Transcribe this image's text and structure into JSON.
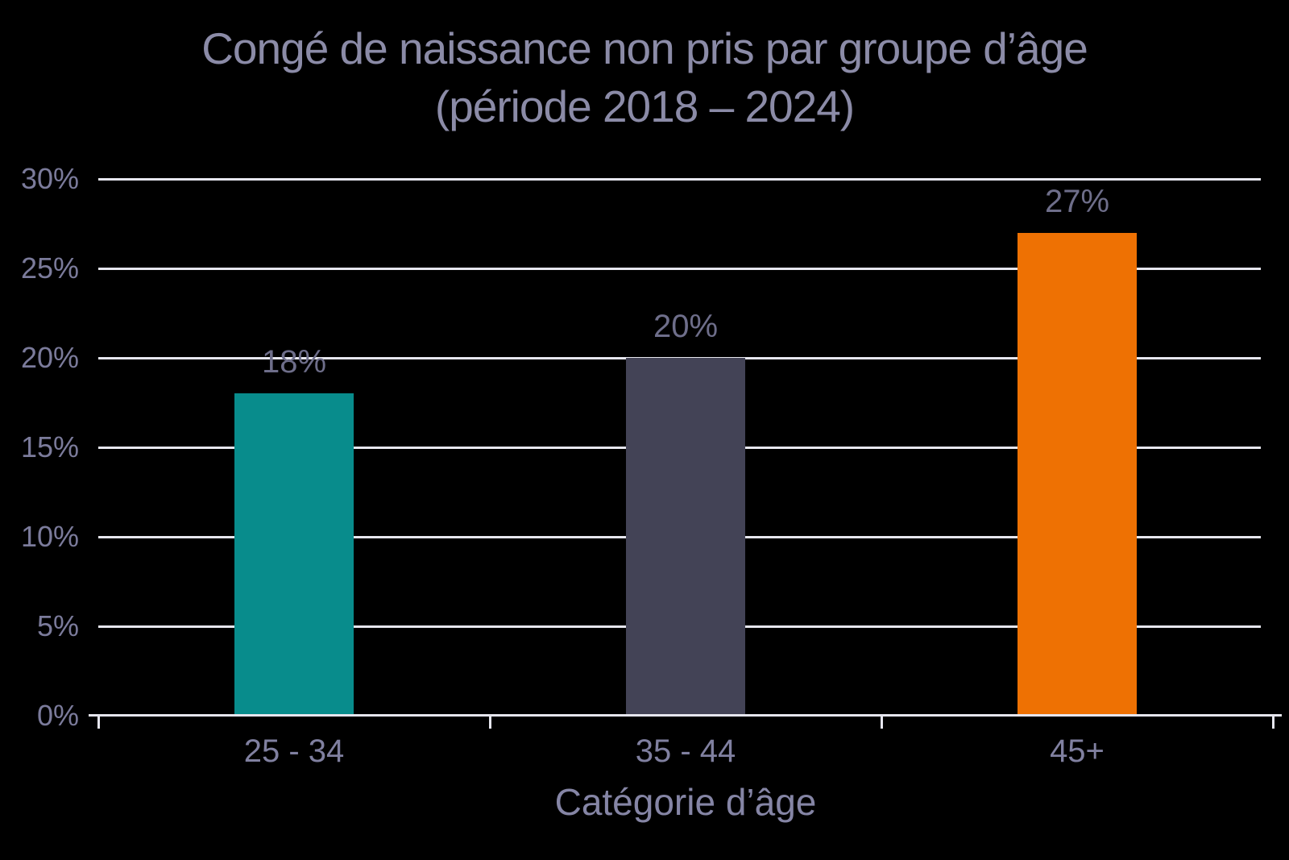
{
  "chart_data": {
    "type": "bar",
    "title_line1": "Congé de naissance non pris par groupe d’âge",
    "title_line2": "(période 2018 – 2024)",
    "xlabel": "Catégorie d’âge",
    "ylabel": "",
    "categories": [
      "25 - 34",
      "35 - 44",
      "45+"
    ],
    "values": [
      18,
      20,
      27
    ],
    "value_labels": [
      "18%",
      "20%",
      "27%"
    ],
    "bar_colors": [
      "#088C8C",
      "#434356",
      "#EE7103"
    ],
    "ylim": [
      0,
      30
    ],
    "ytick_step": 5,
    "ytick_labels": [
      "0%",
      "5%",
      "10%",
      "15%",
      "20%",
      "25%",
      "30%"
    ],
    "grid": true,
    "legend_position": "none",
    "background": "black"
  },
  "colors": {
    "background": "#000000",
    "title_text": "#8B8BA7",
    "ytick_text": "#7B7B9B",
    "value_label_text": "#6E6E8A",
    "category_text": "#8080A0",
    "axis_title_text": "#8585A5",
    "gridline": "#E6E6EE",
    "axis_line": "#E6E6EE"
  }
}
